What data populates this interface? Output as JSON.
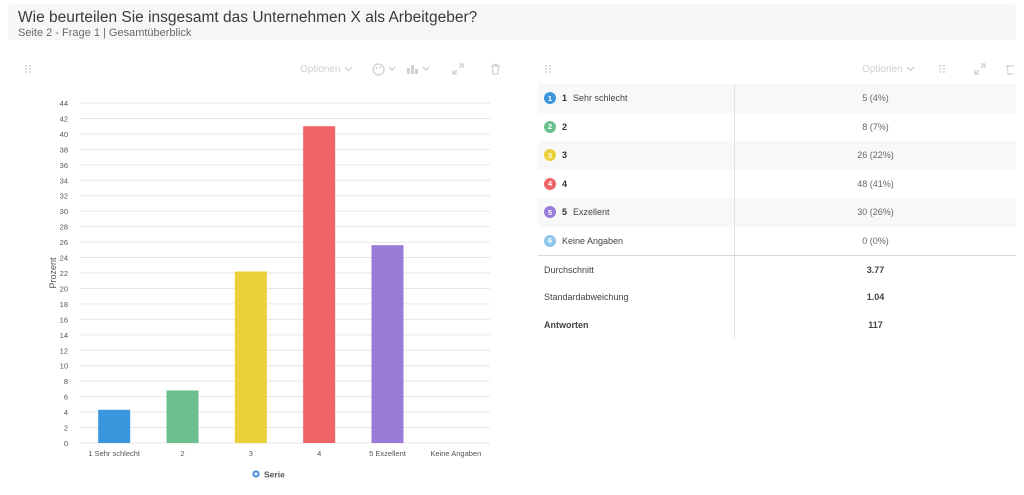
{
  "header": {
    "title": "Wie beurteilen Sie insgesamt das Unternehmen X als Arbeitgeber?",
    "subtitle": "Seite 2 - Frage 1 | Gesamtüberblick"
  },
  "toolbar": {
    "options_label": "Optionen"
  },
  "chart_data": {
    "type": "bar",
    "categories": [
      "1 Sehr schlecht",
      "2",
      "3",
      "4",
      "5 Exzellent",
      "Keine Angaben"
    ],
    "values": [
      4.3,
      6.8,
      22.2,
      41.0,
      25.6,
      0
    ],
    "colors": [
      "#3b97dd",
      "#6cc08f",
      "#ebd03a",
      "#ef6565",
      "#9a7bd8",
      "#8fc6ec"
    ],
    "ylabel": "Prozent",
    "xlabel": "",
    "ylim": [
      0,
      44
    ],
    "yticks": [
      0,
      2,
      4,
      6,
      8,
      10,
      12,
      14,
      16,
      18,
      20,
      22,
      24,
      26,
      28,
      30,
      32,
      34,
      36,
      38,
      40,
      42,
      44
    ],
    "legend": {
      "label": "Serie",
      "position": "bottom"
    },
    "grid": true
  },
  "table": {
    "rows": [
      {
        "badge": "1",
        "num": "1",
        "label": "Sehr schlecht",
        "value": "5 (4%)",
        "color": "#3b97dd"
      },
      {
        "badge": "2",
        "num": "2",
        "label": "",
        "value": "8 (7%)",
        "color": "#6cc08f"
      },
      {
        "badge": "3",
        "num": "3",
        "label": "",
        "value": "26 (22%)",
        "color": "#ebd03a"
      },
      {
        "badge": "4",
        "num": "4",
        "label": "",
        "value": "48 (41%)",
        "color": "#ef6565"
      },
      {
        "badge": "5",
        "num": "5",
        "label": "Exzellent",
        "value": "30 (26%)",
        "color": "#9a7bd8"
      },
      {
        "badge": "6",
        "num": "",
        "label": "Keine Angaben",
        "value": "0 (0%)",
        "color": "#8fc6ec"
      }
    ],
    "stats": [
      {
        "label": "Durchschnitt",
        "value": "3.77",
        "bold_label": false
      },
      {
        "label": "Standardabweichung",
        "value": "1.04",
        "bold_label": false
      },
      {
        "label": "Antworten",
        "value": "117",
        "bold_label": true
      }
    ]
  }
}
